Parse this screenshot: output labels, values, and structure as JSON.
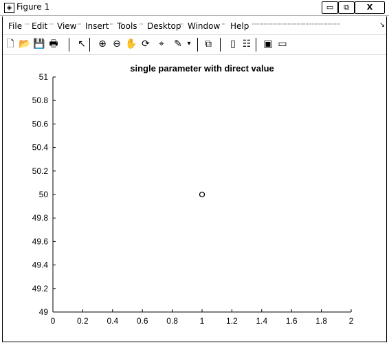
{
  "window": {
    "title": "Figure 1",
    "close_glyph": "X",
    "min_glyph": "▭",
    "max_glyph": "⧉"
  },
  "menu": [
    "File",
    "Edit",
    "View",
    "Insert",
    "Tools",
    "Desktop",
    "Window",
    "Help"
  ],
  "toolbar": [
    {
      "icon": "new-figure-icon",
      "glyph": "🗋"
    },
    {
      "icon": "open-file-icon",
      "glyph": "📂"
    },
    {
      "icon": "save-icon",
      "glyph": "💾"
    },
    {
      "icon": "print-icon",
      "glyph": "🖶"
    },
    {
      "icon": "edit-plot-icon",
      "glyph": "↖"
    },
    {
      "icon": "zoom-in-icon",
      "glyph": "⊕"
    },
    {
      "icon": "zoom-out-icon",
      "glyph": "⊖"
    },
    {
      "icon": "pan-icon",
      "glyph": "✋"
    },
    {
      "icon": "rotate-3d-icon",
      "glyph": "⟳"
    },
    {
      "icon": "data-cursor-icon",
      "glyph": "⌖"
    },
    {
      "icon": "brush-icon",
      "glyph": "✎"
    },
    {
      "icon": "brush-dropdown-icon",
      "glyph": "▾"
    },
    {
      "icon": "link-plot-icon",
      "glyph": "⧉"
    },
    {
      "icon": "colorbar-icon",
      "glyph": "▯"
    },
    {
      "icon": "legend-icon",
      "glyph": "☷"
    },
    {
      "icon": "hide-plot-tools-icon",
      "glyph": "▣"
    },
    {
      "icon": "show-plot-tools-icon",
      "glyph": "▭"
    }
  ],
  "chart_data": {
    "type": "scatter",
    "title": "single parameter with direct value",
    "xlabel": "",
    "ylabel": "",
    "xlim": [
      0,
      2
    ],
    "ylim": [
      49,
      51
    ],
    "xticks": [
      "0",
      "0.2",
      "0.4",
      "0.6",
      "0.8",
      "1",
      "1.2",
      "1.4",
      "1.6",
      "1.8",
      "2"
    ],
    "yticks": [
      "49",
      "49.2",
      "49.4",
      "49.6",
      "49.8",
      "50",
      "50.2",
      "50.4",
      "50.6",
      "50.8",
      "51"
    ],
    "marker": "circle",
    "points": [
      {
        "x": 1,
        "y": 50
      }
    ],
    "grid": false
  }
}
